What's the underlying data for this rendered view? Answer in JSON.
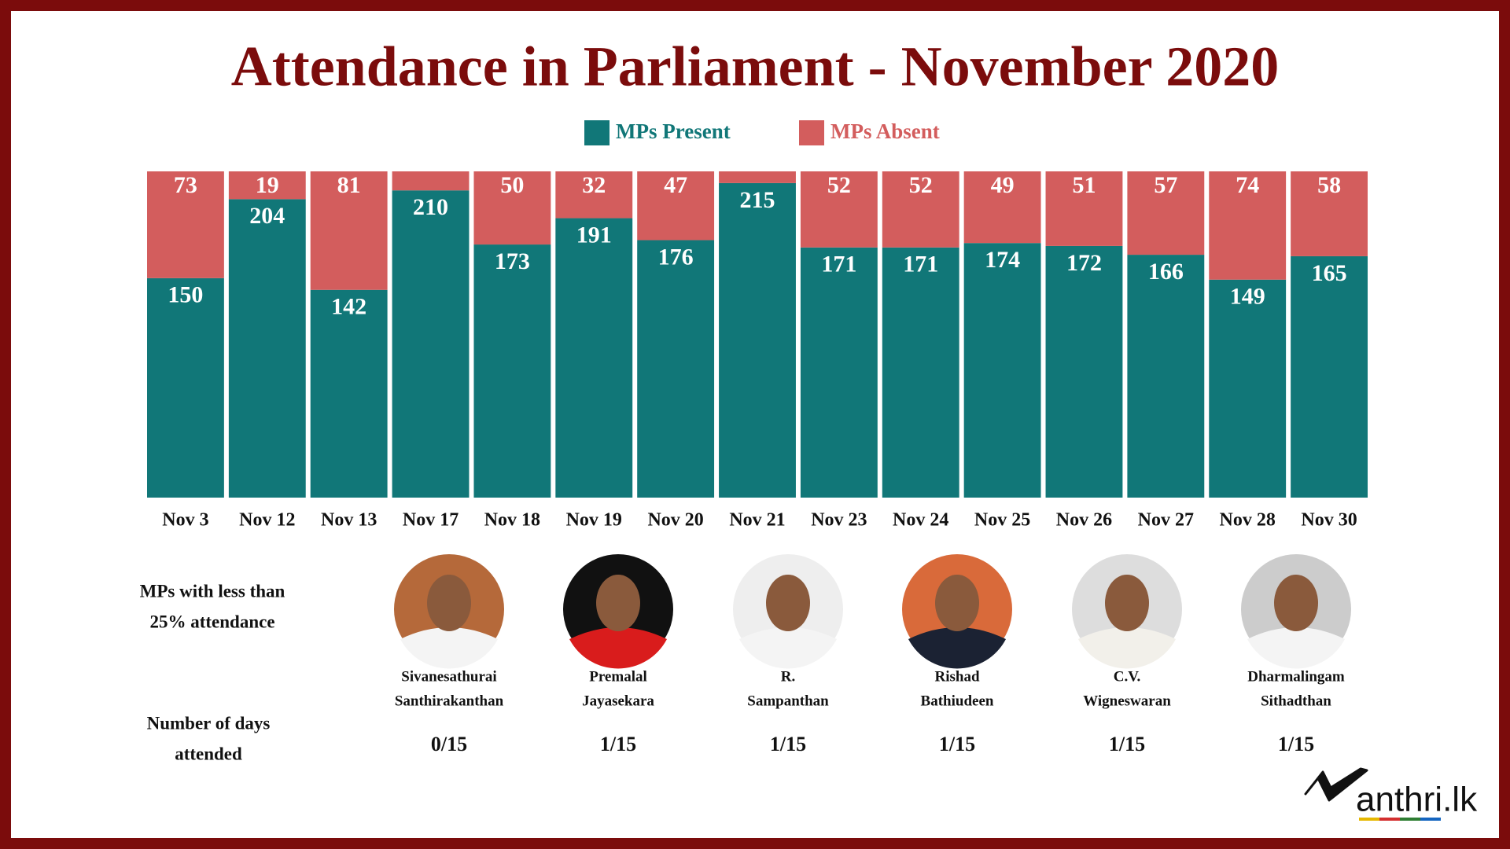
{
  "chart_data": {
    "type": "bar",
    "stacked": true,
    "title": "Attendance in Parliament - November 2020",
    "categories": [
      "Nov 3",
      "Nov 12",
      "Nov 13",
      "Nov 17",
      "Nov 18",
      "Nov 19",
      "Nov 20",
      "Nov 21",
      "Nov 23",
      "Nov 24",
      "Nov 25",
      "Nov 26",
      "Nov 27",
      "Nov 28",
      "Nov 30"
    ],
    "series": [
      {
        "name": "MPs Present",
        "color": "#117778",
        "values": [
          150,
          204,
          142,
          210,
          173,
          191,
          176,
          215,
          171,
          171,
          174,
          172,
          166,
          149,
          165
        ]
      },
      {
        "name": "MPs Absent",
        "color": "#d35d5d",
        "values": [
          73,
          19,
          81,
          13,
          50,
          32,
          47,
          8,
          52,
          52,
          49,
          51,
          57,
          74,
          58
        ],
        "value_labels": [
          "73",
          "19",
          "81",
          null,
          "50",
          "32",
          "47",
          null,
          "52",
          "52",
          "49",
          "51",
          "57",
          "74",
          "58"
        ]
      }
    ],
    "ylim": [
      0,
      223
    ],
    "grid": false
  },
  "mps": {
    "heading": [
      "MPs with less than",
      "25% attendance"
    ],
    "days_heading": [
      "Number of days",
      "attended"
    ],
    "members": [
      {
        "name": [
          "Sivanesathurai",
          "Santhirakanthan"
        ],
        "days": "0/15"
      },
      {
        "name": [
          "Premalal",
          "Jayasekara"
        ],
        "days": "1/15"
      },
      {
        "name": [
          "R.",
          "Sampanthan"
        ],
        "days": "1/15"
      },
      {
        "name": [
          "Rishad",
          "Bathiudeen"
        ],
        "days": "1/15"
      },
      {
        "name": [
          "C.V.",
          "Wigneswaran"
        ],
        "days": "1/15"
      },
      {
        "name": [
          "Dharmalingam",
          "Sithadthan"
        ],
        "days": "1/15"
      }
    ]
  },
  "logo": "anthri.lk"
}
